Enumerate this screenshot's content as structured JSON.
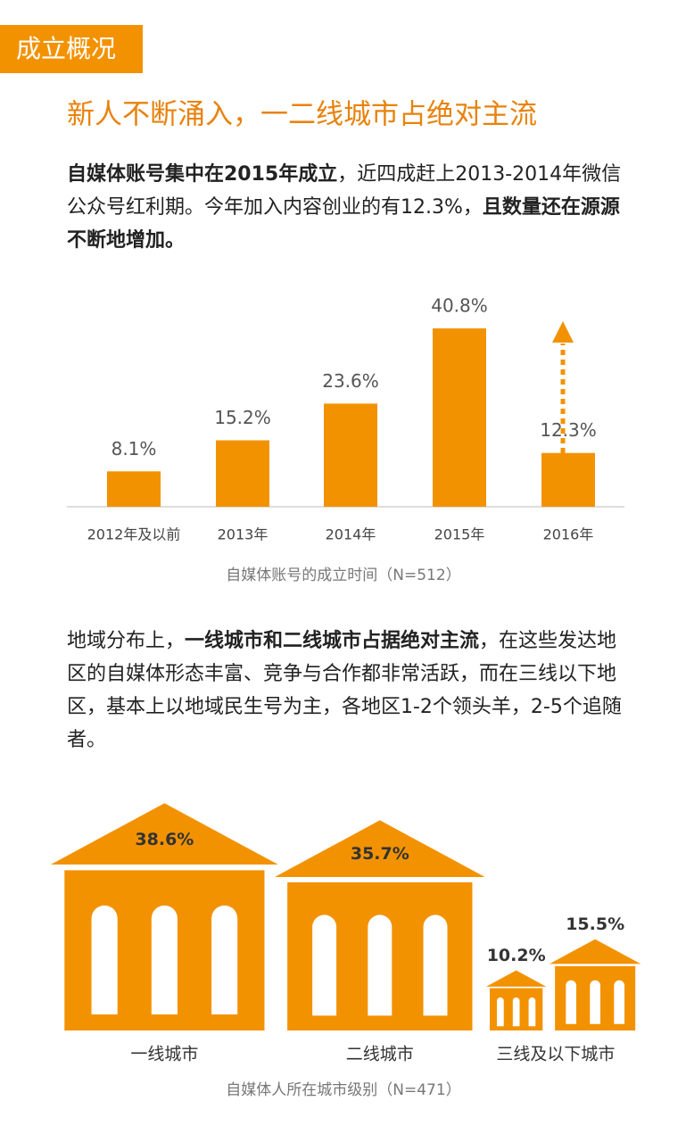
{
  "section_tag": "成立概况",
  "headline": "新人不断涌入，一二线城市占绝对主流",
  "paragraph1": [
    {
      "text": "自媒体账号集中在2015年成立",
      "bold": true
    },
    {
      "text": "，近四成赶上2013-2014年微信公众号红利期。今年加入内容创业的有12.3%，",
      "bold": false
    },
    {
      "text": "且数量还在源源不断地增加。",
      "bold": true
    }
  ],
  "chart_data": [
    {
      "type": "bar",
      "caption": "自媒体账号的成立时间（N=512）",
      "categories": [
        "2012年及以前",
        "2013年",
        "2014年",
        "2015年",
        "2016年"
      ],
      "values": [
        8.1,
        15.2,
        23.6,
        40.8,
        12.3
      ],
      "value_labels": [
        "8.1%",
        "15.2%",
        "23.6%",
        "40.8%",
        "12.3%"
      ],
      "color": "#f39200"
    },
    {
      "type": "building",
      "caption": "自媒体人所在城市级别（N=471）",
      "categories": [
        "一线城市",
        "二线城市",
        "三线及以下城市",
        null
      ],
      "values": [
        38.6,
        35.7,
        10.2,
        15.5
      ],
      "value_labels": [
        "38.6%",
        "35.7%",
        "10.2%",
        "15.5%"
      ],
      "color": "#f39200"
    }
  ],
  "paragraph2": [
    {
      "text": "地域分布上，",
      "bold": false
    },
    {
      "text": "一线城市和二线城市占据绝对主流",
      "bold": true
    },
    {
      "text": "，在这些发达地区的自媒体形态丰富、竞争与合作都非常活跃，而在三线以下地区，基本上以地域民生号为主，各地区1-2个领头羊，2-5个追随者。",
      "bold": false
    }
  ]
}
